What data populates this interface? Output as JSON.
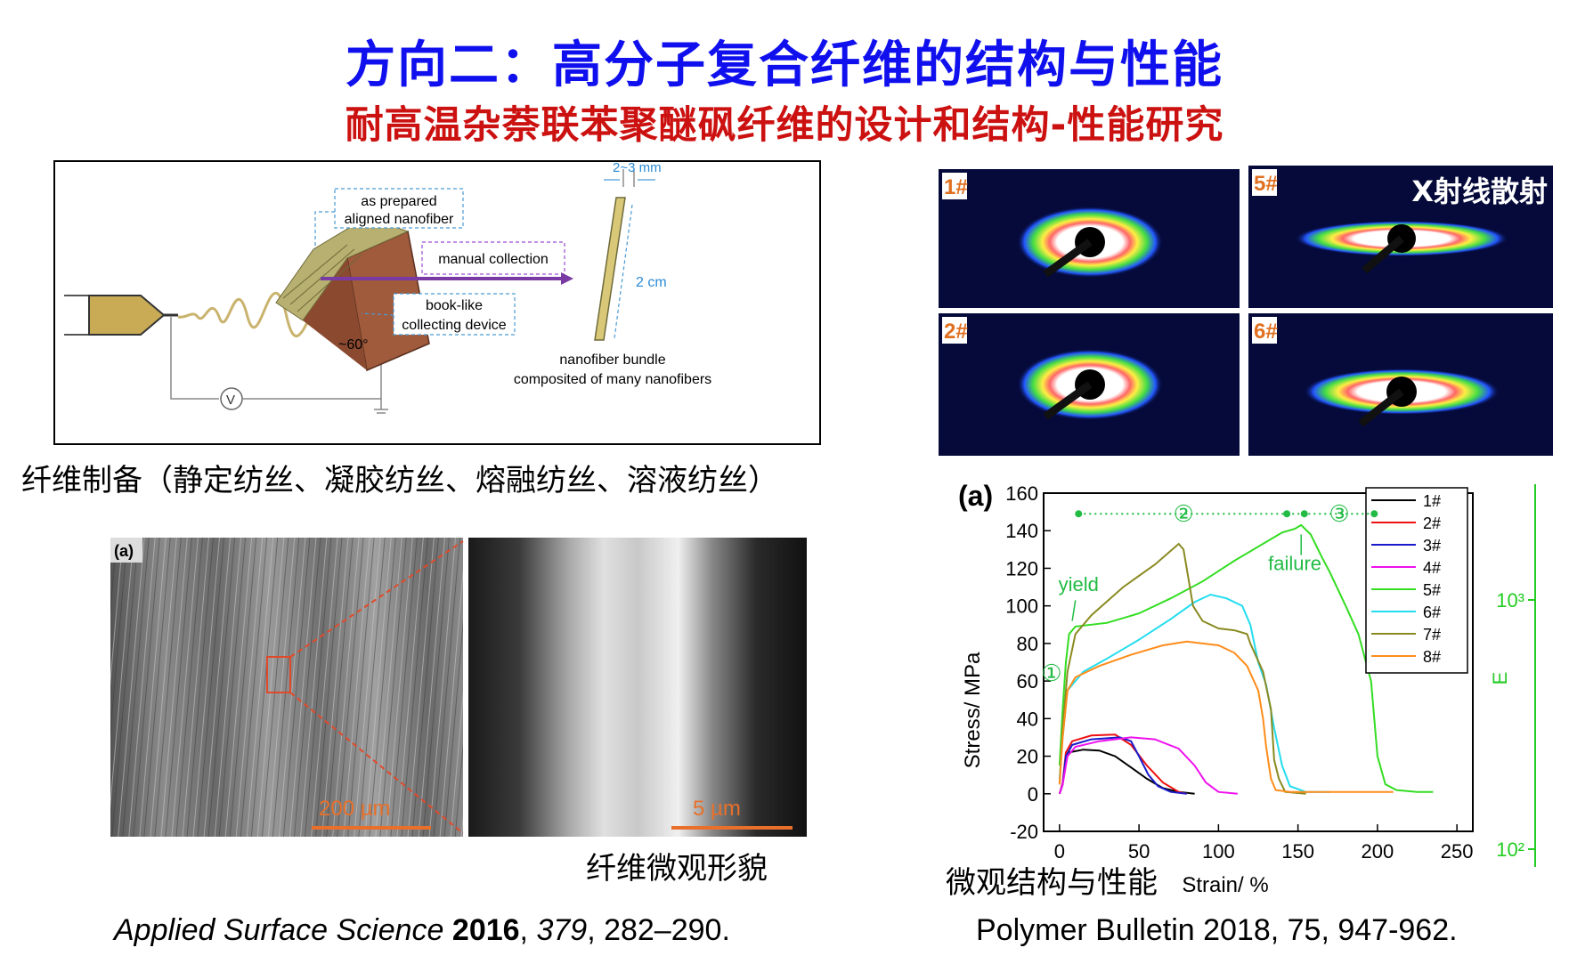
{
  "title": "方向二：高分子复合纤维的结构与性能",
  "subtitle": "耐高温杂萘联苯聚醚砜纤维的设计和结构-性能研究",
  "schematic": {
    "label_width": "2~3 mm",
    "label_as_prepared_1": "as prepared",
    "label_as_prepared_2": "aligned nanofiber",
    "label_manual": "manual collection",
    "label_booklike_1": "book-like",
    "label_booklike_2": "collecting device",
    "label_angle": "~60°",
    "label_length": "2 cm",
    "label_bundle_1": "nanofiber bundle",
    "label_bundle_2": "composited of many nanofibers",
    "label_voltage": "V"
  },
  "caption_preparation": "纤维制备（静定纺丝、凝胶纺丝、熔融纺丝、溶液纺丝）",
  "sem": {
    "panel_label": "(a)",
    "scale_left": "200 µm",
    "scale_right": "5 µm"
  },
  "caption_morphology": "纤维微观形貌",
  "ref_left": {
    "journal": "Applied Surface Science ",
    "year": "2016",
    "sep1": ", ",
    "volume": "379",
    "pages": ", 282–290."
  },
  "xray": {
    "overlay": "X射线散射",
    "labels": [
      "1#",
      "5#",
      "2#",
      "6#"
    ]
  },
  "caption_structure": "微观结构与性能",
  "ref_right": "Polymer Bulletin 2018, 75, 947-962.",
  "chart_data": {
    "type": "line",
    "panel_label": "(a)",
    "xlabel": "Strain/ %",
    "ylabel": "Stress/ MPa",
    "right_label": "E",
    "xlim": [
      -10,
      260
    ],
    "ylim": [
      -20,
      160
    ],
    "xticks": [
      0,
      50,
      100,
      150,
      200,
      250
    ],
    "yticks": [
      -20,
      0,
      20,
      40,
      60,
      80,
      100,
      120,
      140,
      160
    ],
    "right_ticks": [
      "10³",
      "10²"
    ],
    "annotations": {
      "yield": "yield",
      "failure": "failure",
      "region1": "①",
      "region2": "②",
      "region3": "③"
    },
    "colors": {
      "axis_right": "#22cc22",
      "annot": "#22bb44"
    },
    "series": [
      {
        "name": "1#",
        "color": "#000000",
        "points": [
          [
            0,
            0
          ],
          [
            2,
            5
          ],
          [
            4,
            18
          ],
          [
            6,
            22
          ],
          [
            15,
            23.5
          ],
          [
            25,
            23
          ],
          [
            35,
            20
          ],
          [
            45,
            14
          ],
          [
            55,
            8
          ],
          [
            65,
            3
          ],
          [
            75,
            1
          ],
          [
            85,
            0
          ]
        ]
      },
      {
        "name": "2#",
        "color": "#ee1111",
        "points": [
          [
            0,
            0
          ],
          [
            2,
            6
          ],
          [
            4,
            22
          ],
          [
            8,
            28
          ],
          [
            20,
            31
          ],
          [
            35,
            31.5
          ],
          [
            45,
            26
          ],
          [
            55,
            15
          ],
          [
            65,
            6
          ],
          [
            75,
            1
          ],
          [
            80,
            0
          ]
        ]
      },
      {
        "name": "3#",
        "color": "#1a1acc",
        "points": [
          [
            0,
            0
          ],
          [
            2,
            5
          ],
          [
            4,
            20
          ],
          [
            8,
            26
          ],
          [
            20,
            29
          ],
          [
            38,
            30
          ],
          [
            45,
            28
          ],
          [
            50,
            20
          ],
          [
            56,
            10
          ],
          [
            62,
            4
          ],
          [
            70,
            1
          ],
          [
            80,
            0
          ]
        ]
      },
      {
        "name": "4#",
        "color": "#ee11ee",
        "points": [
          [
            0,
            0
          ],
          [
            2,
            5
          ],
          [
            5,
            20
          ],
          [
            10,
            25
          ],
          [
            25,
            28
          ],
          [
            45,
            30
          ],
          [
            60,
            29
          ],
          [
            75,
            24
          ],
          [
            85,
            15
          ],
          [
            92,
            6
          ],
          [
            100,
            1
          ],
          [
            112,
            0
          ]
        ]
      },
      {
        "name": "5#",
        "color": "#33dd22",
        "points": [
          [
            0,
            15
          ],
          [
            2,
            45
          ],
          [
            4,
            70
          ],
          [
            6,
            85
          ],
          [
            10,
            89
          ],
          [
            30,
            91
          ],
          [
            50,
            96
          ],
          [
            70,
            104
          ],
          [
            90,
            113
          ],
          [
            110,
            124
          ],
          [
            130,
            134
          ],
          [
            140,
            139
          ],
          [
            148,
            141
          ],
          [
            152,
            143
          ],
          [
            158,
            138
          ],
          [
            165,
            126
          ],
          [
            170,
            118
          ],
          [
            180,
            100
          ],
          [
            188,
            85
          ],
          [
            196,
            60
          ],
          [
            200,
            20
          ],
          [
            205,
            5
          ],
          [
            212,
            2
          ],
          [
            225,
            1
          ],
          [
            235,
            1
          ]
        ]
      },
      {
        "name": "6#",
        "color": "#22ddee",
        "points": [
          [
            0,
            8
          ],
          [
            2,
            30
          ],
          [
            5,
            55
          ],
          [
            15,
            65
          ],
          [
            30,
            72
          ],
          [
            50,
            82
          ],
          [
            70,
            93
          ],
          [
            85,
            102
          ],
          [
            95,
            106
          ],
          [
            105,
            104
          ],
          [
            115,
            100
          ],
          [
            120,
            90
          ],
          [
            125,
            70
          ],
          [
            130,
            58
          ],
          [
            135,
            35
          ],
          [
            140,
            15
          ],
          [
            145,
            4
          ],
          [
            155,
            1
          ],
          [
            170,
            1
          ]
        ]
      },
      {
        "name": "7#",
        "color": "#8a8a22",
        "points": [
          [
            0,
            5
          ],
          [
            2,
            35
          ],
          [
            5,
            65
          ],
          [
            10,
            85
          ],
          [
            20,
            95
          ],
          [
            40,
            110
          ],
          [
            60,
            122
          ],
          [
            75,
            133
          ],
          [
            78,
            130
          ],
          [
            84,
            100
          ],
          [
            90,
            92
          ],
          [
            100,
            88
          ],
          [
            110,
            87
          ],
          [
            118,
            85
          ],
          [
            120,
            80
          ],
          [
            128,
            65
          ],
          [
            133,
            45
          ],
          [
            135,
            18
          ],
          [
            138,
            8
          ],
          [
            142,
            1
          ],
          [
            155,
            0
          ]
        ]
      },
      {
        "name": "8#",
        "color": "#ff8c1a",
        "points": [
          [
            0,
            5
          ],
          [
            2,
            30
          ],
          [
            5,
            55
          ],
          [
            10,
            62
          ],
          [
            25,
            68
          ],
          [
            45,
            74
          ],
          [
            65,
            79
          ],
          [
            80,
            81
          ],
          [
            90,
            80
          ],
          [
            100,
            79
          ],
          [
            110,
            75
          ],
          [
            118,
            68
          ],
          [
            125,
            55
          ],
          [
            128,
            40
          ],
          [
            130,
            25
          ],
          [
            133,
            8
          ],
          [
            136,
            2
          ],
          [
            145,
            1
          ],
          [
            210,
            1
          ]
        ]
      }
    ]
  }
}
